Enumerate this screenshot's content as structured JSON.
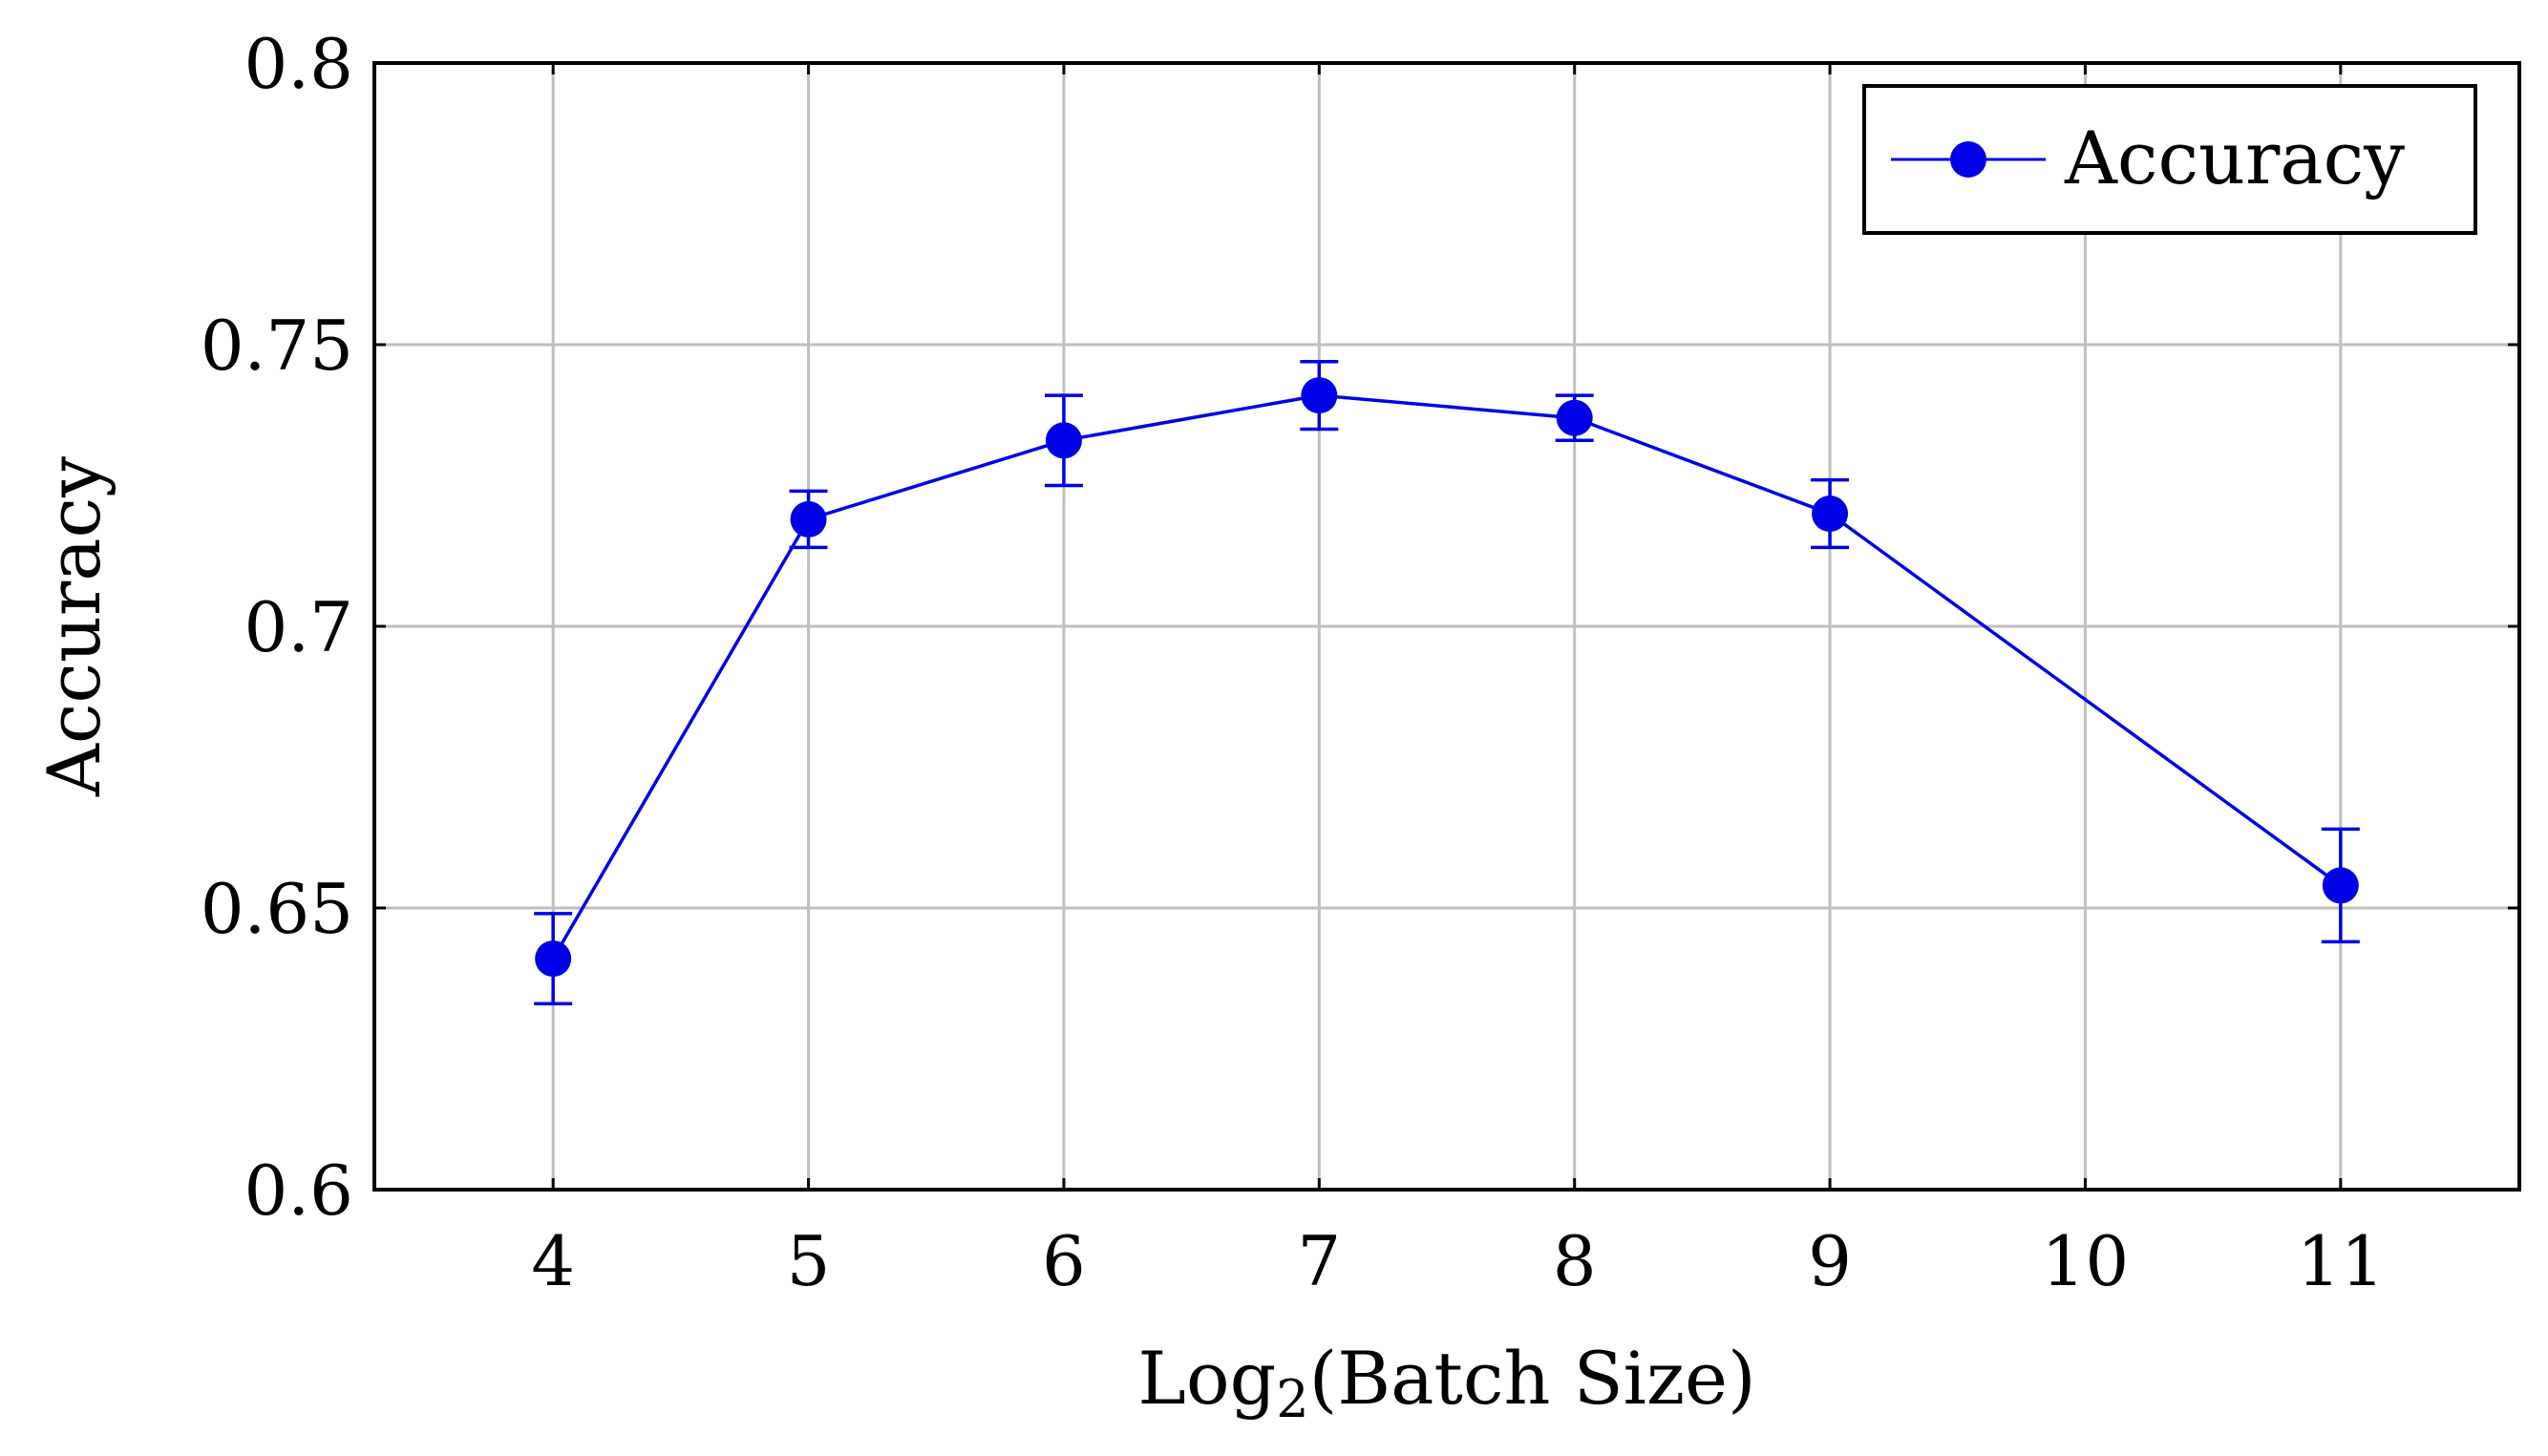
{
  "chart_data": {
    "type": "line",
    "xlabel": {
      "base": "Log",
      "subscript": "2",
      "rest": "(Batch Size)"
    },
    "ylabel": "Accuracy",
    "xlim": [
      3.3,
      11.7
    ],
    "ylim": [
      0.6,
      0.8
    ],
    "x_ticks": [
      4,
      5,
      6,
      7,
      8,
      9,
      10,
      11
    ],
    "y_ticks": [
      0.6,
      0.65,
      0.7,
      0.75,
      0.8
    ],
    "y_tick_labels": [
      "0.6",
      "0.65",
      "0.7",
      "0.75",
      "0.8"
    ],
    "grid": true,
    "legend_position": "top-right",
    "series": [
      {
        "name": "Accuracy",
        "color": "#0000e6",
        "marker": "circle",
        "x": [
          4,
          5,
          6,
          7,
          8,
          9,
          11
        ],
        "y": [
          0.641,
          0.719,
          0.733,
          0.741,
          0.737,
          0.72,
          0.654
        ],
        "error": [
          0.008,
          0.005,
          0.008,
          0.006,
          0.004,
          0.006,
          0.01
        ]
      }
    ]
  }
}
